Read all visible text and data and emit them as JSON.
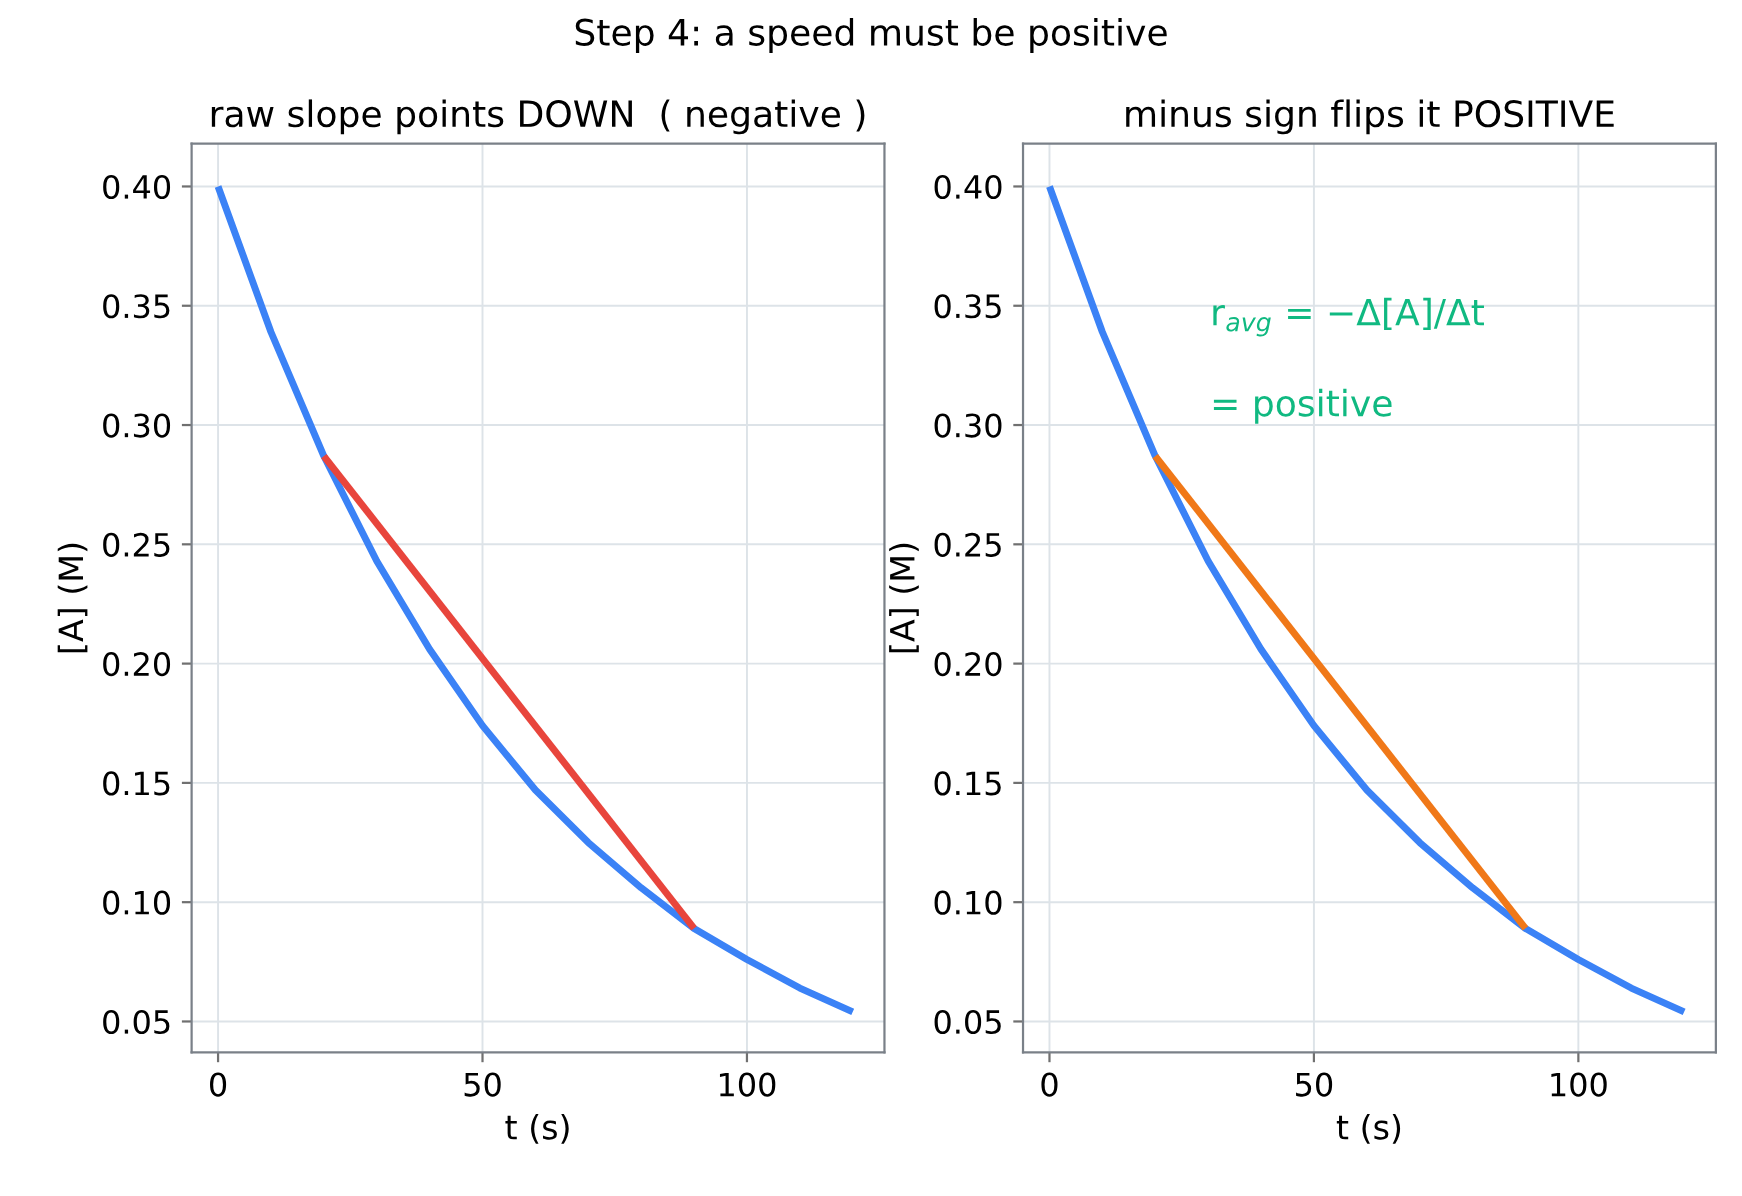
{
  "chart_data": [
    {
      "type": "line",
      "title": "raw slope points DOWN  ( negative )",
      "xlabel": "t (s)",
      "ylabel": "[A] (M)",
      "annotations": [
        "Step 4: a speed must be positive"
      ],
      "series": [
        {
          "color": "#3b82f6",
          "x": [
            0,
            10,
            20,
            30,
            40,
            50,
            60,
            70,
            80,
            90,
            100,
            110,
            120
          ],
          "values": [
            0.4,
            0.339,
            0.287,
            0.243,
            0.206,
            0.174,
            0.147,
            0.125,
            0.106,
            0.089,
            0.076,
            0.064,
            0.054
          ]
        },
        {
          "color": "#e8453c",
          "x": [
            20,
            90
          ],
          "values": [
            0.287,
            0.089
          ]
        }
      ],
      "xlim": [
        -5,
        126
      ],
      "ylim": [
        0.037,
        0.418
      ],
      "xticks": [
        0,
        50,
        100
      ],
      "yticks": [
        {
          "value": 0.05,
          "label": "0.05"
        },
        {
          "value": 0.1,
          "label": "0.10"
        },
        {
          "value": 0.15,
          "label": "0.15"
        },
        {
          "value": 0.2,
          "label": "0.20"
        },
        {
          "value": 0.25,
          "label": "0.25"
        },
        {
          "value": 0.3,
          "label": "0.30"
        },
        {
          "value": 0.35,
          "label": "0.35"
        },
        {
          "value": 0.4,
          "label": "0.40"
        }
      ],
      "grid": true,
      "legend": false
    },
    {
      "type": "line",
      "title": "minus sign flips it POSITIVE",
      "xlabel": "t (s)",
      "ylabel": "[A] (M)",
      "annotations": [
        "r$_{avg}$ = −Δ[A]/Δt",
        "= positive"
      ],
      "series": [
        {
          "color": "#3b82f6",
          "x": [
            0,
            10,
            20,
            30,
            40,
            50,
            60,
            70,
            80,
            90,
            100,
            110,
            120
          ],
          "values": [
            0.4,
            0.339,
            0.287,
            0.243,
            0.206,
            0.174,
            0.147,
            0.125,
            0.106,
            0.089,
            0.076,
            0.064,
            0.054
          ]
        },
        {
          "color": "#f07818",
          "x": [
            20,
            90
          ],
          "values": [
            0.287,
            0.089
          ]
        }
      ],
      "xlim": [
        -5,
        126
      ],
      "ylim": [
        0.037,
        0.418
      ],
      "xticks": [
        0,
        50,
        100
      ],
      "yticks": [
        {
          "value": 0.05,
          "label": "0.05"
        },
        {
          "value": 0.1,
          "label": "0.10"
        },
        {
          "value": 0.15,
          "label": "0.15"
        },
        {
          "value": 0.2,
          "label": "0.20"
        },
        {
          "value": 0.25,
          "label": "0.25"
        },
        {
          "value": 0.3,
          "label": "0.30"
        },
        {
          "value": 0.35,
          "label": "0.35"
        },
        {
          "value": 0.4,
          "label": "0.40"
        }
      ],
      "grid": true,
      "legend": false
    }
  ]
}
